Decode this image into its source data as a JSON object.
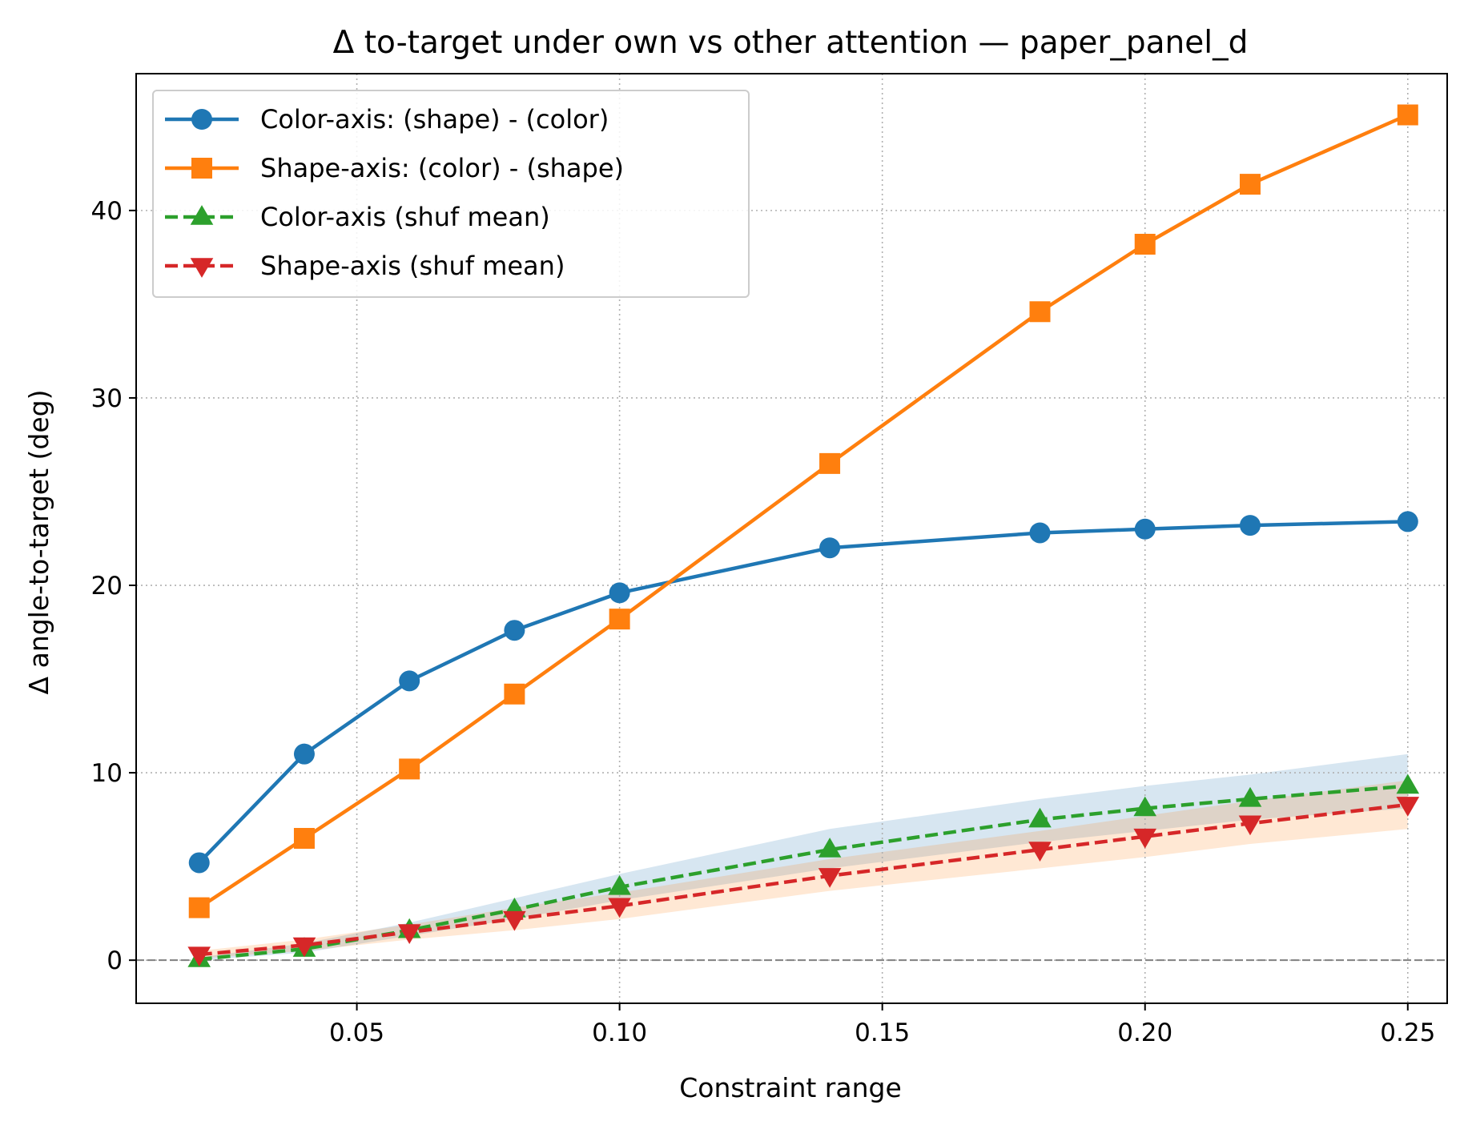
{
  "chart_data": {
    "type": "line",
    "title": "Δ to-target under own vs other attention — paper_panel_d",
    "xlabel": "Constraint range",
    "ylabel": "Δ angle-to-target (deg)",
    "xlim": [
      0.008,
      0.2575
    ],
    "ylim": [
      -2.3,
      47.3
    ],
    "x": [
      0.02,
      0.04,
      0.06,
      0.08,
      0.1,
      0.14,
      0.18,
      0.2,
      0.22,
      0.25
    ],
    "xticks": [
      0.05,
      0.1,
      0.15,
      0.2,
      0.25
    ],
    "xtick_labels": [
      "0.05",
      "0.10",
      "0.15",
      "0.20",
      "0.25"
    ],
    "yticks": [
      0,
      10,
      20,
      30,
      40
    ],
    "ytick_labels": [
      "0",
      "10",
      "20",
      "30",
      "40"
    ],
    "grid": true,
    "legend_position": "upper-left",
    "zero_reference_line": true,
    "series": [
      {
        "name": "Color-axis: (shape) - (color)",
        "color": "#1f77b4",
        "marker": "circle",
        "dash": "solid",
        "values": [
          5.2,
          11.0,
          14.9,
          17.6,
          19.6,
          22.0,
          22.8,
          23.0,
          23.2,
          23.4
        ]
      },
      {
        "name": "Shape-axis: (color) - (shape)",
        "color": "#ff7f0e",
        "marker": "square",
        "dash": "solid",
        "values": [
          2.8,
          6.5,
          10.2,
          14.2,
          18.2,
          26.5,
          34.6,
          38.2,
          41.4,
          45.1
        ]
      },
      {
        "name": "Color-axis (shuf mean)",
        "color": "#2ca02c",
        "marker": "triangle-up",
        "dash": "dashed",
        "values": [
          0.05,
          0.6,
          1.6,
          2.7,
          3.9,
          5.9,
          7.5,
          8.1,
          8.6,
          9.3
        ],
        "band_color": "#1f77b4",
        "band_low": [
          0.0,
          0.4,
          1.3,
          2.2,
          3.2,
          4.9,
          6.3,
          6.9,
          7.5,
          8.1
        ],
        "band_high": [
          0.15,
          0.9,
          2.0,
          3.3,
          4.6,
          7.0,
          8.6,
          9.3,
          9.9,
          11.0
        ]
      },
      {
        "name": "Shape-axis (shuf mean)",
        "color": "#d62728",
        "marker": "triangle-down",
        "dash": "dashed",
        "values": [
          0.3,
          0.8,
          1.5,
          2.2,
          2.9,
          4.5,
          5.9,
          6.6,
          7.3,
          8.3
        ],
        "band_color": "#ff7f0e",
        "band_low": [
          0.1,
          0.5,
          1.1,
          1.6,
          2.2,
          3.7,
          4.9,
          5.5,
          6.2,
          7.0
        ],
        "band_high": [
          0.5,
          1.1,
          1.9,
          2.8,
          3.6,
          5.4,
          6.9,
          7.7,
          8.5,
          9.6
        ]
      }
    ]
  }
}
